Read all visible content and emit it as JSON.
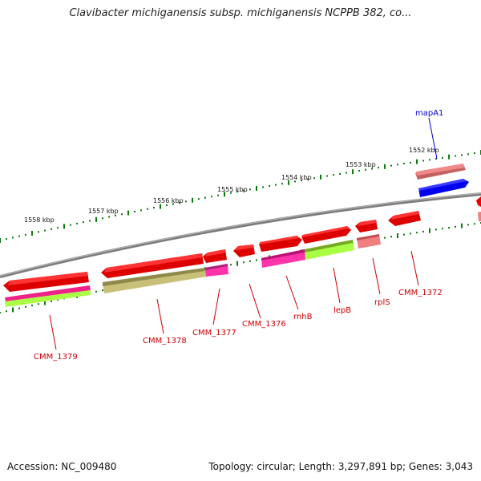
{
  "title": "Clavibacter michiganensis subsp. michiganensis NCPPB 382, co...",
  "footer": {
    "accession": "Accession: NC_009480",
    "summary": "Topology: circular; Length: 3,297,891 bp; Genes: 3,043"
  },
  "scale_ticks": [
    "1558 kbp",
    "1557 kbp",
    "1556 kbp",
    "1555 kbp",
    "1554 kbp",
    "1553 kbp",
    "1552 kbp"
  ],
  "genes": [
    {
      "label": "CMM_1379",
      "strand": "minus"
    },
    {
      "label": "CMM_1378",
      "strand": "minus"
    },
    {
      "label": "CMM_1377",
      "strand": "minus"
    },
    {
      "label": "CMM_1376",
      "strand": "minus"
    },
    {
      "label": "rnhB",
      "strand": "plus"
    },
    {
      "label": "lepB",
      "strand": "plus"
    },
    {
      "label": "rplS",
      "strand": "minus"
    },
    {
      "label": "CMM_1372",
      "strand": "minus"
    },
    {
      "label": "mapA1",
      "strand": "plus"
    }
  ],
  "colors": {
    "backbone": "#888888",
    "gene": "#ff0000",
    "gene_light": "#f08080",
    "mapA1": "#0000ff",
    "magenta": "#ff33aa",
    "lime": "#aaff44",
    "olive": "#c8c078",
    "tick": "#117711"
  }
}
